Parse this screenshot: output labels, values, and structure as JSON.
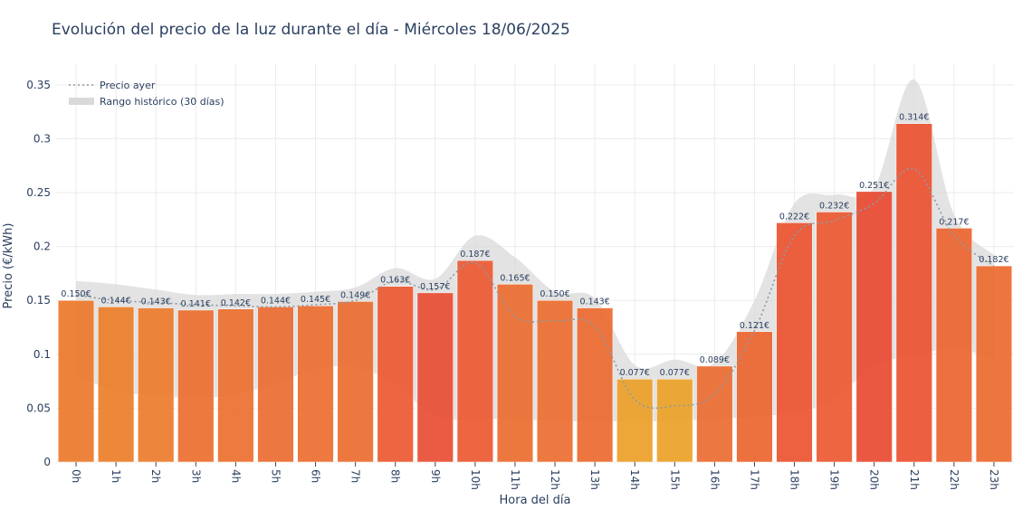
{
  "chart_data": {
    "type": "bar",
    "title": "Evolución del precio de la luz durante el día - Miércoles 18/06/2025",
    "xlabel": "Hora del día",
    "ylabel": "Precio (€/kWh)",
    "ylim": [
      0,
      0.37
    ],
    "yticks": [
      0,
      0.05,
      0.1,
      0.15,
      0.2,
      0.25,
      0.3,
      0.35
    ],
    "ytick_labels": [
      "0",
      "0.05",
      "0.1",
      "0.15",
      "0.2",
      "0.25",
      "0.3",
      "0.35"
    ],
    "grid": true,
    "legend_position": "top-left",
    "categories": [
      "0h",
      "1h",
      "2h",
      "3h",
      "4h",
      "5h",
      "6h",
      "7h",
      "8h",
      "9h",
      "10h",
      "11h",
      "12h",
      "13h",
      "14h",
      "15h",
      "16h",
      "17h",
      "18h",
      "19h",
      "20h",
      "21h",
      "22h",
      "23h"
    ],
    "values": [
      0.15,
      0.144,
      0.143,
      0.141,
      0.142,
      0.144,
      0.145,
      0.149,
      0.163,
      0.157,
      0.187,
      0.165,
      0.15,
      0.143,
      0.077,
      0.077,
      0.089,
      0.121,
      0.222,
      0.232,
      0.251,
      0.314,
      0.217,
      0.182
    ],
    "value_labels": [
      "0.150€",
      "0.144€",
      "0.143€",
      "0.141€",
      "0.142€",
      "0.144€",
      "0.145€",
      "0.149€",
      "0.163€",
      "0.157€",
      "0.187€",
      "0.165€",
      "0.150€",
      "0.143€",
      "0.077€",
      "0.077€",
      "0.089€",
      "0.121€",
      "0.222€",
      "0.232€",
      "0.251€",
      "0.314€",
      "0.217€",
      "0.182€"
    ],
    "bar_colors": [
      "#ec7a2c",
      "#ec7f2c",
      "#ec7c2e",
      "#ec6f30",
      "#ec702f",
      "#ec6d31",
      "#ec6f31",
      "#ec6e30",
      "#ec5a33",
      "#e84f35",
      "#ec5a33",
      "#ec6e30",
      "#ec6f31",
      "#ec6c32",
      "#eca02a",
      "#eca328",
      "#ec6d32",
      "#ec6530",
      "#ec5533",
      "#ec5a33",
      "#e84b33",
      "#ec5333",
      "#ec6533",
      "#ec6c30"
    ],
    "legend": [
      {
        "name": "Precio ayer",
        "style": "dotted-line",
        "color": "#8a9aa8"
      },
      {
        "name": "Rango histórico (30 días)",
        "style": "band",
        "color": "#d9d9d9"
      }
    ],
    "series": [
      {
        "name": "Precio ayer",
        "values": [
          0.155,
          0.15,
          0.148,
          0.146,
          0.145,
          0.144,
          0.146,
          0.15,
          0.168,
          0.16,
          0.185,
          0.135,
          0.131,
          0.126,
          0.058,
          0.052,
          0.063,
          0.122,
          0.21,
          0.224,
          0.24,
          0.272,
          0.21,
          0.182
        ]
      },
      {
        "name": "Rango histórico (30 días)",
        "lower": [
          0.08,
          0.066,
          0.062,
          0.059,
          0.063,
          0.073,
          0.086,
          0.088,
          0.072,
          0.042,
          0.04,
          0.04,
          0.038,
          0.038,
          0.038,
          0.038,
          0.04,
          0.042,
          0.046,
          0.058,
          0.09,
          0.098,
          0.106,
          0.095
        ],
        "upper": [
          0.168,
          0.165,
          0.16,
          0.155,
          0.156,
          0.156,
          0.158,
          0.162,
          0.18,
          0.17,
          0.21,
          0.19,
          0.158,
          0.152,
          0.09,
          0.095,
          0.092,
          0.15,
          0.24,
          0.248,
          0.255,
          0.355,
          0.23,
          0.192
        ]
      }
    ]
  }
}
